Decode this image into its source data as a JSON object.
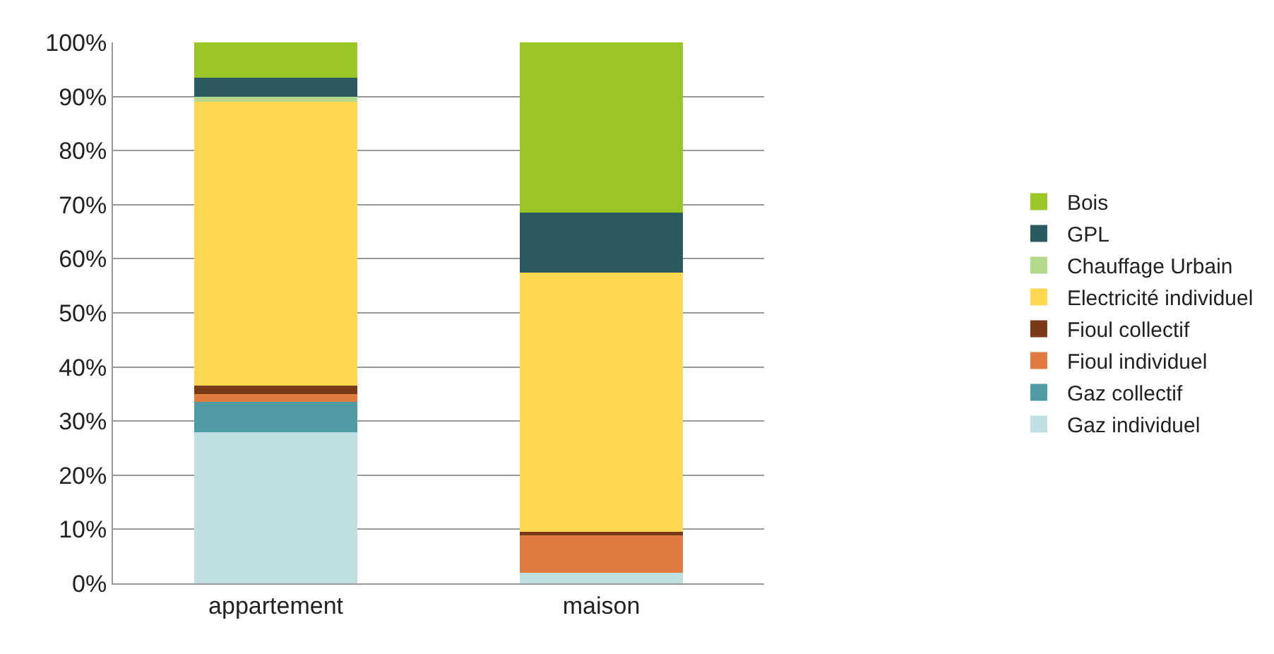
{
  "chart_data": {
    "type": "bar",
    "stacked": true,
    "categories": [
      "appartement",
      "maison"
    ],
    "series": [
      {
        "name": "Gaz individuel",
        "color": "#bfdfe3",
        "values": [
          28,
          2
        ]
      },
      {
        "name": "Gaz collectif",
        "color": "#4e9ba3",
        "values": [
          5.5,
          0
        ]
      },
      {
        "name": "Fioul individuel",
        "color": "#e07a3f",
        "values": [
          1.5,
          7
        ]
      },
      {
        "name": "Fioul collectif",
        "color": "#7b3a17",
        "values": [
          1.5,
          0.5
        ]
      },
      {
        "name": "Electricité individuel",
        "color": "#ffd750",
        "values": [
          52.5,
          48
        ]
      },
      {
        "name": "Chauffage Urbain",
        "color": "#b5d98a",
        "values": [
          1,
          0
        ]
      },
      {
        "name": "GPL",
        "color": "#2a5a60",
        "values": [
          3.5,
          11
        ]
      },
      {
        "name": "Bois",
        "color": "#9ac626",
        "values": [
          6.5,
          31.5
        ]
      }
    ],
    "ylim": [
      0,
      100
    ],
    "yticks": [
      {
        "value": 0,
        "label": "0%"
      },
      {
        "value": 10,
        "label": "10%"
      },
      {
        "value": 20,
        "label": "20%"
      },
      {
        "value": 30,
        "label": "30%"
      },
      {
        "value": 40,
        "label": "40%"
      },
      {
        "value": 50,
        "label": "50%"
      },
      {
        "value": 60,
        "label": "60%"
      },
      {
        "value": 70,
        "label": "70%"
      },
      {
        "value": 80,
        "label": "80%"
      },
      {
        "value": 90,
        "label": "90%"
      },
      {
        "value": 100,
        "label": "100%"
      }
    ],
    "grid": "y",
    "legend": "right"
  }
}
